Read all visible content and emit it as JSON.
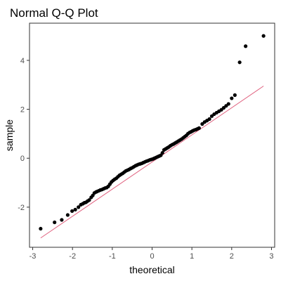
{
  "chart_data": {
    "type": "scatter",
    "title": "Normal Q-Q Plot",
    "xlabel": "theoretical",
    "ylabel": "sample",
    "xlim": [
      -3.08,
      3.08
    ],
    "ylim": [
      -3.64,
      5.52
    ],
    "x_ticks": [
      -3,
      -2,
      -1,
      0,
      1,
      2,
      3
    ],
    "y_ticks": [
      -2,
      0,
      2,
      4
    ],
    "grid": false,
    "legend": "none",
    "colors": {
      "points": "#000000",
      "reference_line": "#e0607e"
    },
    "reference_line": {
      "x": [
        -2.8,
        2.8
      ],
      "y": [
        -3.26,
        2.95
      ]
    },
    "points": {
      "x": [
        -2.8,
        -2.45,
        -2.27,
        -2.12,
        -2.01,
        -1.93,
        -1.85,
        -1.79,
        -1.74,
        -1.7,
        -1.66,
        -1.62,
        -1.58,
        -1.53,
        -1.49,
        -1.45,
        -1.41,
        -1.38,
        -1.34,
        -1.3,
        -1.26,
        -1.22,
        -1.18,
        -1.14,
        -1.1,
        -1.06,
        -1.02,
        -0.98,
        -0.94,
        -0.9,
        -0.86,
        -0.82,
        -0.78,
        -0.74,
        -0.7,
        -0.66,
        -0.62,
        -0.58,
        -0.54,
        -0.5,
        -0.46,
        -0.42,
        -0.38,
        -0.34,
        -0.3,
        -0.26,
        -0.22,
        -0.18,
        -0.14,
        -0.1,
        -0.06,
        -0.02,
        0.02,
        0.06,
        0.1,
        0.14,
        0.18,
        0.22,
        0.26,
        0.3,
        0.34,
        0.38,
        0.42,
        0.46,
        0.5,
        0.54,
        0.58,
        0.62,
        0.66,
        0.7,
        0.74,
        0.78,
        0.82,
        0.86,
        0.9,
        0.94,
        0.98,
        1.02,
        1.06,
        1.1,
        1.14,
        1.18,
        1.26,
        1.32,
        1.38,
        1.44,
        1.5,
        1.56,
        1.62,
        1.68,
        1.74,
        1.8,
        1.86,
        1.92,
        2.0,
        2.08,
        2.2,
        2.35,
        2.8
      ],
      "y": [
        -2.88,
        -2.62,
        -2.52,
        -2.32,
        -2.16,
        -2.1,
        -2.0,
        -1.9,
        -1.86,
        -1.82,
        -1.8,
        -1.75,
        -1.71,
        -1.6,
        -1.52,
        -1.42,
        -1.38,
        -1.36,
        -1.33,
        -1.3,
        -1.28,
        -1.25,
        -1.22,
        -1.2,
        -1.15,
        -1.06,
        -0.97,
        -0.91,
        -0.86,
        -0.82,
        -0.76,
        -0.7,
        -0.66,
        -0.62,
        -0.57,
        -0.52,
        -0.49,
        -0.46,
        -0.42,
        -0.39,
        -0.35,
        -0.31,
        -0.28,
        -0.25,
        -0.23,
        -0.21,
        -0.18,
        -0.15,
        -0.12,
        -0.1,
        -0.07,
        -0.05,
        -0.03,
        0.0,
        0.03,
        0.06,
        0.09,
        0.12,
        0.22,
        0.34,
        0.38,
        0.42,
        0.46,
        0.51,
        0.55,
        0.58,
        0.62,
        0.66,
        0.7,
        0.74,
        0.78,
        0.83,
        0.88,
        0.93,
        1.0,
        1.05,
        1.08,
        1.12,
        1.15,
        1.17,
        1.2,
        1.23,
        1.4,
        1.48,
        1.54,
        1.6,
        1.72,
        1.8,
        1.86,
        1.92,
        1.98,
        2.06,
        2.14,
        2.22,
        2.45,
        2.58,
        3.92,
        4.58,
        5.0
      ]
    }
  }
}
